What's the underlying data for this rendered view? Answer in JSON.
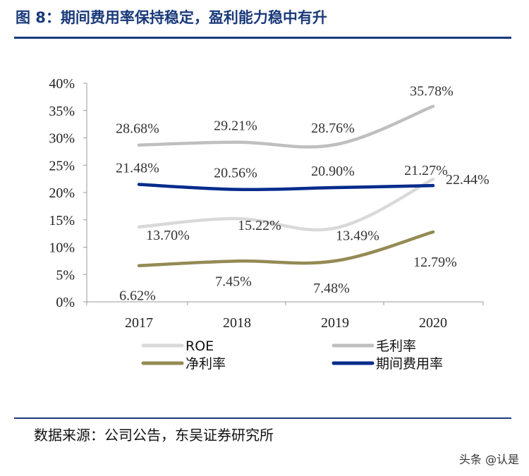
{
  "figure_title": "图 8：期间费用率保持稳定，盈利能力稳中有升",
  "source": "数据来源：公司公告，东吴证券研究所",
  "watermark": "头条 @认是",
  "chart_data": {
    "type": "line",
    "categories": [
      "2017",
      "2018",
      "2019",
      "2020"
    ],
    "ylim": [
      0,
      40
    ],
    "y_ticks": [
      "0%",
      "5%",
      "10%",
      "15%",
      "20%",
      "25%",
      "30%",
      "35%",
      "40%"
    ],
    "grid": false,
    "legend_position": "bottom",
    "series": [
      {
        "name": "ROE",
        "color": "#d9d9d9",
        "values": [
          13.7,
          15.22,
          13.49,
          22.44
        ],
        "labels": [
          "13.70%",
          "15.22%",
          "13.49%",
          "22.44%"
        ]
      },
      {
        "name": "毛利率",
        "color": "#bfbfbf",
        "values": [
          28.68,
          29.21,
          28.76,
          35.78
        ],
        "labels": [
          "28.68%",
          "29.21%",
          "28.76%",
          "35.78%"
        ]
      },
      {
        "name": "净利率",
        "color": "#948a54",
        "values": [
          6.62,
          7.45,
          7.48,
          12.79
        ],
        "labels": [
          "6.62%",
          "7.45%",
          "7.48%",
          "12.79%"
        ]
      },
      {
        "name": "期间费用率",
        "color": "#002b8c",
        "values": [
          21.48,
          20.56,
          20.9,
          21.27
        ],
        "labels": [
          "21.48%",
          "20.56%",
          "20.90%",
          "21.27%"
        ]
      }
    ]
  }
}
